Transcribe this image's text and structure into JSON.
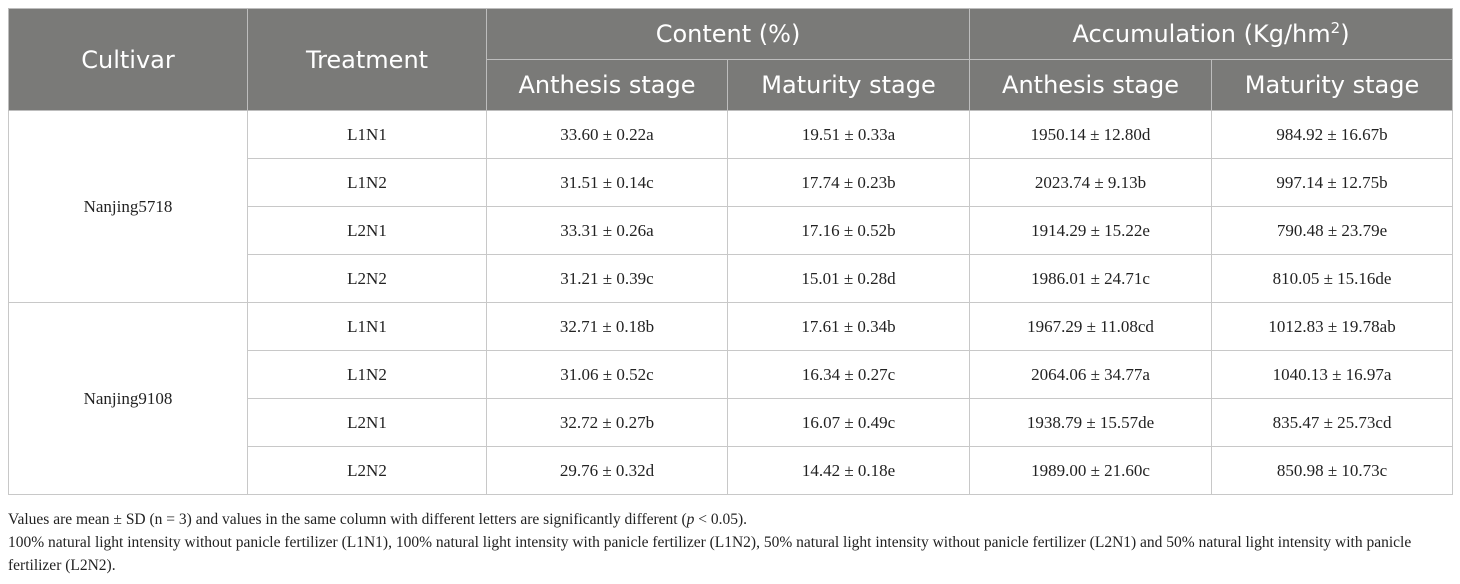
{
  "header": {
    "cultivar": "Cultivar",
    "treatment": "Treatment",
    "content": "Content (%)",
    "accumulation_prefix": "Accumulation (Kg/hm",
    "accumulation_sup": "2",
    "accumulation_suffix": ")",
    "anthesis": "Anthesis stage",
    "maturity": "Maturity stage"
  },
  "groups": [
    {
      "cultivar": "Nanjing5718",
      "rows": [
        {
          "treatment": "L1N1",
          "c_anthesis": "33.60 ± 0.22a",
          "c_maturity": "19.51 ± 0.33a",
          "a_anthesis": "1950.14 ± 12.80d",
          "a_maturity": "984.92 ± 16.67b"
        },
        {
          "treatment": "L1N2",
          "c_anthesis": "31.51 ± 0.14c",
          "c_maturity": "17.74 ± 0.23b",
          "a_anthesis": "2023.74 ± 9.13b",
          "a_maturity": "997.14 ± 12.75b"
        },
        {
          "treatment": "L2N1",
          "c_anthesis": "33.31 ± 0.26a",
          "c_maturity": "17.16 ± 0.52b",
          "a_anthesis": "1914.29 ± 15.22e",
          "a_maturity": "790.48 ± 23.79e"
        },
        {
          "treatment": "L2N2",
          "c_anthesis": "31.21 ± 0.39c",
          "c_maturity": "15.01 ± 0.28d",
          "a_anthesis": "1986.01 ± 24.71c",
          "a_maturity": "810.05 ± 15.16de"
        }
      ]
    },
    {
      "cultivar": "Nanjing9108",
      "rows": [
        {
          "treatment": "L1N1",
          "c_anthesis": "32.71 ± 0.18b",
          "c_maturity": "17.61 ± 0.34b",
          "a_anthesis": "1967.29 ± 11.08cd",
          "a_maturity": "1012.83 ± 19.78ab"
        },
        {
          "treatment": "L1N2",
          "c_anthesis": "31.06 ± 0.52c",
          "c_maturity": "16.34 ± 0.27c",
          "a_anthesis": "2064.06 ± 34.77a",
          "a_maturity": "1040.13 ± 16.97a"
        },
        {
          "treatment": "L2N1",
          "c_anthesis": "32.72 ± 0.27b",
          "c_maturity": "16.07 ± 0.49c",
          "a_anthesis": "1938.79 ± 15.57de",
          "a_maturity": "835.47 ± 25.73cd"
        },
        {
          "treatment": "L2N2",
          "c_anthesis": "29.76 ± 0.32d",
          "c_maturity": "14.42 ± 0.18e",
          "a_anthesis": "1989.00 ± 21.60c",
          "a_maturity": "850.98 ± 10.73c"
        }
      ]
    }
  ],
  "notes": {
    "line1_pre": "Values are mean ± SD (n = 3) and values in the same column with different letters are significantly different (",
    "line1_p": "p",
    "line1_post": " < 0.05).",
    "line2": "100% natural light intensity without panicle fertilizer (L1N1), 100% natural light intensity with panicle fertilizer (L1N2), 50% natural light intensity without panicle fertilizer (L2N1) and 50% natural light intensity with panicle fertilizer (L2N2)."
  }
}
